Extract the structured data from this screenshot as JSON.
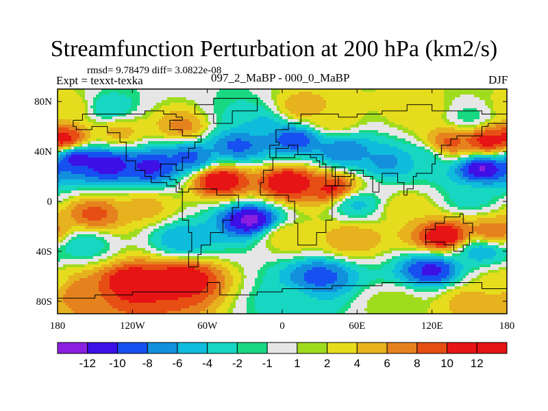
{
  "figure": {
    "title": "Streamfunction Perturbation at 200 hPa (km2/s)",
    "stats_line": "rmsd= 9.78479 diff= 3.0822e-08",
    "left_label": "Expt = texxt-texka",
    "center_label": "097_2_MaBP - 000_0_MaBP",
    "season": "DJF"
  },
  "chart_data": {
    "type": "heatmap",
    "title": "Streamfunction Perturbation at 200 hPa (km2/s)",
    "xlabel": "",
    "ylabel": "",
    "x_range": [
      -180,
      180
    ],
    "y_range": [
      -90,
      90
    ],
    "x_ticks": [
      {
        "value": -180,
        "label": "180"
      },
      {
        "value": -120,
        "label": "120W"
      },
      {
        "value": -60,
        "label": "60W"
      },
      {
        "value": 0,
        "label": "0"
      },
      {
        "value": 60,
        "label": "60E"
      },
      {
        "value": 120,
        "label": "120E"
      },
      {
        "value": 180,
        "label": "180"
      }
    ],
    "y_ticks": [
      {
        "value": 80,
        "label": "80N"
      },
      {
        "value": 40,
        "label": "40N"
      },
      {
        "value": 0,
        "label": "0"
      },
      {
        "value": -40,
        "label": "40S"
      },
      {
        "value": -80,
        "label": "80S"
      }
    ],
    "colorbar": {
      "levels": [
        "-12",
        "-10",
        "-8",
        "-6",
        "-4",
        "-2",
        "-1",
        "1",
        "2",
        "4",
        "6",
        "8",
        "10",
        "12"
      ],
      "colors": [
        "#8b1fe0",
        "#3d10e6",
        "#1750f0",
        "#1390dc",
        "#0fbcdc",
        "#17d6c2",
        "#18d882",
        "#e6e6e6",
        "#a0dc1e",
        "#e6dc1e",
        "#e6b21e",
        "#e6821e",
        "#e64e14",
        "#e61414",
        "#e61414"
      ]
    },
    "fields": [
      {
        "lon": -165,
        "lat": 35,
        "value": -12
      },
      {
        "lon": -140,
        "lat": 30,
        "value": -12
      },
      {
        "lon": -105,
        "lat": 28,
        "value": -11
      },
      {
        "lon": -75,
        "lat": 35,
        "value": -9
      },
      {
        "lon": -35,
        "lat": 45,
        "value": -9
      },
      {
        "lon": 10,
        "lat": 50,
        "value": -10
      },
      {
        "lon": 50,
        "lat": 40,
        "value": -8
      },
      {
        "lon": 85,
        "lat": 32,
        "value": -7
      },
      {
        "lon": 110,
        "lat": 35,
        "value": -4
      },
      {
        "lon": 160,
        "lat": 27,
        "value": -13
      },
      {
        "lon": -175,
        "lat": 50,
        "value": 12
      },
      {
        "lon": 165,
        "lat": 48,
        "value": 12
      },
      {
        "lon": 135,
        "lat": 47,
        "value": 9
      },
      {
        "lon": -50,
        "lat": 17,
        "value": 13
      },
      {
        "lon": 5,
        "lat": 15,
        "value": 13
      },
      {
        "lon": 40,
        "lat": 10,
        "value": 11
      },
      {
        "lon": 15,
        "lat": 75,
        "value": 6
      },
      {
        "lon": 40,
        "lat": 65,
        "value": 4
      },
      {
        "lon": -80,
        "lat": 60,
        "value": 7
      },
      {
        "lon": -130,
        "lat": 55,
        "value": 5
      },
      {
        "lon": -170,
        "lat": 75,
        "value": 4
      },
      {
        "lon": 110,
        "lat": 72,
        "value": 4
      },
      {
        "lon": 150,
        "lat": 68,
        "value": -2
      },
      {
        "lon": -140,
        "lat": 75,
        "value": -4
      },
      {
        "lon": -30,
        "lat": 68,
        "value": -2
      },
      {
        "lon": -20,
        "lat": 62,
        "value": -6
      },
      {
        "lon": -25,
        "lat": -15,
        "value": -13
      },
      {
        "lon": 60,
        "lat": -2,
        "value": -5
      },
      {
        "lon": 150,
        "lat": 2,
        "value": -3
      },
      {
        "lon": -150,
        "lat": -10,
        "value": 9
      },
      {
        "lon": -110,
        "lat": -5,
        "value": 5
      },
      {
        "lon": 100,
        "lat": -5,
        "value": 4
      },
      {
        "lon": 5,
        "lat": -28,
        "value": 4
      },
      {
        "lon": 55,
        "lat": -30,
        "value": 6
      },
      {
        "lon": 130,
        "lat": -28,
        "value": 13
      },
      {
        "lon": 170,
        "lat": -25,
        "value": 8
      },
      {
        "lon": -80,
        "lat": -30,
        "value": -6
      },
      {
        "lon": -160,
        "lat": -35,
        "value": -4
      },
      {
        "lon": -120,
        "lat": -65,
        "value": 13
      },
      {
        "lon": -80,
        "lat": -62,
        "value": 12
      },
      {
        "lon": -160,
        "lat": -72,
        "value": 8
      },
      {
        "lon": 30,
        "lat": -60,
        "value": -9
      },
      {
        "lon": 120,
        "lat": -55,
        "value": -11
      },
      {
        "lon": 160,
        "lat": -40,
        "value": -6
      },
      {
        "lon": 5,
        "lat": -80,
        "value": -3
      },
      {
        "lon": 90,
        "lat": -82,
        "value": 2
      },
      {
        "lon": 150,
        "lat": -80,
        "value": 5
      },
      {
        "lon": 175,
        "lat": -65,
        "value": 3
      }
    ]
  }
}
